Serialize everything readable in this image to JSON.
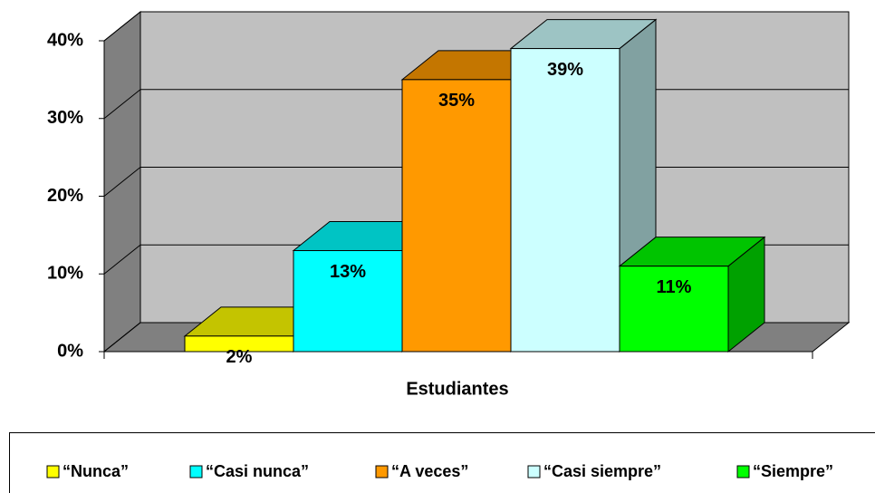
{
  "chart_data": {
    "type": "bar",
    "categories": [
      "Estudiantes"
    ],
    "series": [
      {
        "name": "“Nunca”",
        "color": "#ffff00",
        "values": [
          2
        ],
        "value_labels": [
          "2%"
        ]
      },
      {
        "name": "“Casi nunca”",
        "color": "#00ffff",
        "values": [
          13
        ],
        "value_labels": [
          "13%"
        ]
      },
      {
        "name": "“A veces”",
        "color": "#ff9900",
        "values": [
          35
        ],
        "value_labels": [
          "35%"
        ]
      },
      {
        "name": "“Casi siempre”",
        "color": "#ccffff",
        "values": [
          39
        ],
        "value_labels": [
          "39%"
        ]
      },
      {
        "name": "“Siempre”",
        "color": "#00ff00",
        "values": [
          11
        ],
        "value_labels": [
          "11%"
        ]
      }
    ],
    "ylim": [
      0,
      40
    ],
    "yticks": [
      {
        "value": 0,
        "label": "0%"
      },
      {
        "value": 10,
        "label": "10%"
      },
      {
        "value": 20,
        "label": "20%"
      },
      {
        "value": 30,
        "label": "30%"
      },
      {
        "value": 40,
        "label": "40%"
      }
    ],
    "grid": true,
    "legend": "bottom"
  }
}
